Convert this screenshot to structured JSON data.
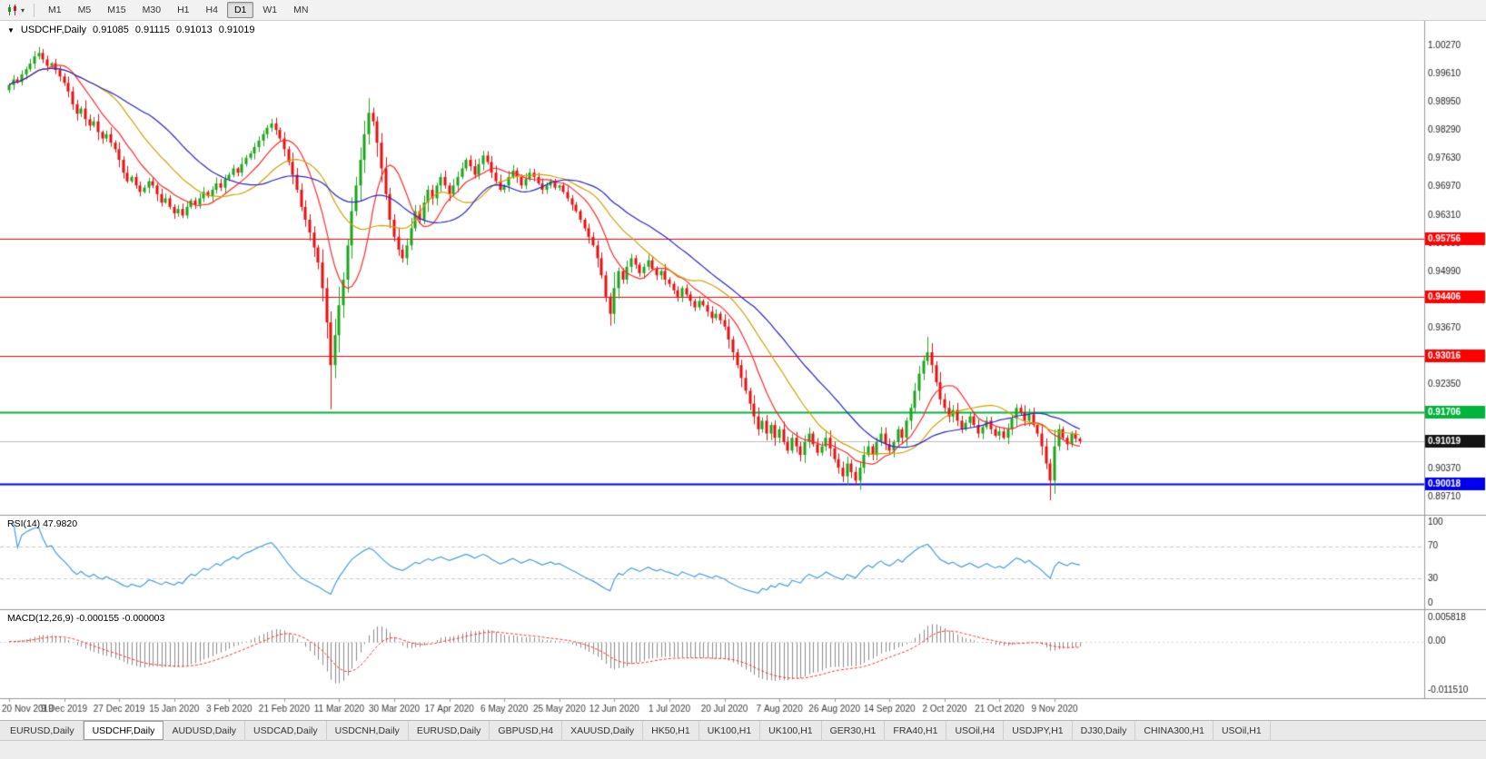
{
  "toolbar": {
    "chart_menu_caret": "▾",
    "timeframes": [
      {
        "label": "M1",
        "active": false
      },
      {
        "label": "M5",
        "active": false
      },
      {
        "label": "M15",
        "active": false
      },
      {
        "label": "M30",
        "active": false
      },
      {
        "label": "H1",
        "active": false
      },
      {
        "label": "H4",
        "active": false
      },
      {
        "label": "D1",
        "active": true
      },
      {
        "label": "W1",
        "active": false
      },
      {
        "label": "MN",
        "active": false
      }
    ]
  },
  "symbol_info": {
    "collapse_icon": "▼",
    "title": "USDCHF,Daily",
    "open": "0.91085",
    "high": "0.91115",
    "low": "0.91013",
    "close": "0.91019"
  },
  "price_axis_labels": [
    "1.00270",
    "0.99610",
    "0.98950",
    "0.98290",
    "0.97630",
    "0.96970",
    "0.96310",
    "0.95650",
    "0.94990",
    "0.94330",
    "0.93670",
    "0.93010",
    "0.92350",
    "0.91690",
    "0.91030",
    "0.90370",
    "0.89710"
  ],
  "levels": [
    {
      "price": 0.95756,
      "label": "0.95756",
      "color": "#ff0000",
      "width": 1
    },
    {
      "price": 0.94406,
      "label": "0.94406",
      "color": "#ff0000",
      "width": 1
    },
    {
      "price": 0.93016,
      "label": "0.93016",
      "color": "#ff0000",
      "width": 1
    },
    {
      "price": 0.91706,
      "label": "0.91706",
      "color": "#00b43c",
      "width": 2
    },
    {
      "price": 0.90018,
      "label": "0.90018",
      "color": "#0000ee",
      "width": 2
    }
  ],
  "current_price": {
    "value": 0.91019,
    "label": "0.91019",
    "badge_color": "#141414",
    "line_color": "#bdbdbd"
  },
  "rsi": {
    "title": "RSI(14) 47.9820",
    "scale_labels": [
      {
        "text": "100",
        "value": 100
      },
      {
        "text": "70",
        "value": 70
      },
      {
        "text": "30",
        "value": 30
      },
      {
        "text": "0",
        "value": 0
      }
    ],
    "dashed_levels": [
      70,
      30
    ],
    "line_color": "#4a9ede"
  },
  "macd": {
    "title": "MACD(12,26,9) -0.000155 -0.000003",
    "scale_labels": [
      {
        "text": "0.005818",
        "value": 0.005818
      },
      {
        "text": "0.00",
        "value": 0
      },
      {
        "text": "-0.011510",
        "value": -0.01151
      }
    ],
    "hist_color": "#8a8a8a",
    "signal_color": "#ff3030"
  },
  "tabs": [
    {
      "label": "EURUSD,Daily",
      "active": false
    },
    {
      "label": "USDCHF,Daily",
      "active": true
    },
    {
      "label": "AUDUSD,Daily",
      "active": false
    },
    {
      "label": "USDCAD,Daily",
      "active": false
    },
    {
      "label": "USDCNH,Daily",
      "active": false
    },
    {
      "label": "EURUSD,Daily",
      "active": false
    },
    {
      "label": "GBPUSD,H4",
      "active": false
    },
    {
      "label": "XAUUSD,Daily",
      "active": false
    },
    {
      "label": "HK50,H1",
      "active": false
    },
    {
      "label": "UK100,H1",
      "active": false
    },
    {
      "label": "UK100,H1",
      "active": false
    },
    {
      "label": "GER30,H1",
      "active": false
    },
    {
      "label": "FRA40,H1",
      "active": false
    },
    {
      "label": "USOil,H4",
      "active": false
    },
    {
      "label": "USDJPY,H1",
      "active": false
    },
    {
      "label": "DJ30,Daily",
      "active": false
    },
    {
      "label": "CHINA300,H1",
      "active": false
    },
    {
      "label": "USOil,H1",
      "active": false
    }
  ],
  "chart_data": {
    "type": "candlestick",
    "symbol": "USDCHF",
    "timeframe": "Daily",
    "x_tick_labels": [
      {
        "index": 0,
        "label": "20 Nov 2019"
      },
      {
        "index": 13,
        "label": "9 Dec 2019"
      },
      {
        "index": 26,
        "label": "27 Dec 2019"
      },
      {
        "index": 39,
        "label": "15 Jan 2020"
      },
      {
        "index": 52,
        "label": "3 Feb 2020"
      },
      {
        "index": 65,
        "label": "21 Feb 2020"
      },
      {
        "index": 78,
        "label": "11 Mar 2020"
      },
      {
        "index": 91,
        "label": "30 Mar 2020"
      },
      {
        "index": 104,
        "label": "17 Apr 2020"
      },
      {
        "index": 117,
        "label": "6 May 2020"
      },
      {
        "index": 130,
        "label": "25 May 2020"
      },
      {
        "index": 143,
        "label": "12 Jun 2020"
      },
      {
        "index": 156,
        "label": "1 Jul 2020"
      },
      {
        "index": 169,
        "label": "20 Jul 2020"
      },
      {
        "index": 182,
        "label": "7 Aug 2020"
      },
      {
        "index": 195,
        "label": "26 Aug 2020"
      },
      {
        "index": 208,
        "label": "14 Sep 2020"
      },
      {
        "index": 221,
        "label": "2 Oct 2020"
      },
      {
        "index": 234,
        "label": "21 Oct 2020"
      },
      {
        "index": 247,
        "label": "9 Nov 2020"
      }
    ],
    "closes": [
      0.9935,
      0.9948,
      0.9942,
      0.996,
      0.9972,
      0.9985,
      1.0002,
      1.001,
      0.9995,
      0.998,
      0.9986,
      0.997,
      0.9955,
      0.994,
      0.992,
      0.989,
      0.9868,
      0.988,
      0.9855,
      0.984,
      0.985,
      0.9825,
      0.981,
      0.982,
      0.98,
      0.9785,
      0.976,
      0.973,
      0.971,
      0.972,
      0.97,
      0.9685,
      0.9695,
      0.971,
      0.97,
      0.968,
      0.966,
      0.967,
      0.965,
      0.9635,
      0.9645,
      0.963,
      0.965,
      0.9665,
      0.9655,
      0.967,
      0.9685,
      0.9675,
      0.969,
      0.9705,
      0.9695,
      0.9715,
      0.9725,
      0.974,
      0.973,
      0.975,
      0.9765,
      0.9775,
      0.979,
      0.9805,
      0.982,
      0.9835,
      0.9845,
      0.983,
      0.981,
      0.9785,
      0.9755,
      0.9725,
      0.969,
      0.965,
      0.962,
      0.959,
      0.9555,
      0.952,
      0.946,
      0.938,
      0.928,
      0.935,
      0.942,
      0.948,
      0.956,
      0.964,
      0.97,
      0.976,
      0.982,
      0.987,
      0.985,
      0.98,
      0.974,
      0.968,
      0.962,
      0.958,
      0.955,
      0.953,
      0.956,
      0.96,
      0.964,
      0.962,
      0.966,
      0.969,
      0.967,
      0.97,
      0.972,
      0.97,
      0.968,
      0.97,
      0.972,
      0.974,
      0.976,
      0.9745,
      0.9725,
      0.975,
      0.977,
      0.9755,
      0.973,
      0.971,
      0.969,
      0.97,
      0.972,
      0.9735,
      0.972,
      0.97,
      0.9715,
      0.973,
      0.972,
      0.9705,
      0.969,
      0.97,
      0.971,
      0.9695,
      0.97,
      0.9685,
      0.967,
      0.9655,
      0.964,
      0.962,
      0.96,
      0.958,
      0.956,
      0.953,
      0.949,
      0.944,
      0.94,
      0.946,
      0.95,
      0.948,
      0.951,
      0.953,
      0.9515,
      0.9495,
      0.951,
      0.9525,
      0.9505,
      0.949,
      0.95,
      0.948,
      0.947,
      0.9455,
      0.944,
      0.946,
      0.9445,
      0.943,
      0.9415,
      0.943,
      0.942,
      0.9405,
      0.939,
      0.94,
      0.9385,
      0.937,
      0.934,
      0.931,
      0.928,
      0.925,
      0.922,
      0.919,
      0.916,
      0.913,
      0.915,
      0.912,
      0.914,
      0.911,
      0.913,
      0.91,
      0.908,
      0.911,
      0.909,
      0.907,
      0.91,
      0.912,
      0.9095,
      0.9075,
      0.909,
      0.911,
      0.9085,
      0.906,
      0.904,
      0.902,
      0.905,
      0.903,
      0.901,
      0.904,
      0.907,
      0.909,
      0.907,
      0.91,
      0.912,
      0.9095,
      0.908,
      0.91,
      0.913,
      0.911,
      0.915,
      0.918,
      0.922,
      0.926,
      0.929,
      0.931,
      0.928,
      0.924,
      0.92,
      0.918,
      0.916,
      0.9175,
      0.915,
      0.913,
      0.9145,
      0.916,
      0.914,
      0.912,
      0.9135,
      0.915,
      0.913,
      0.9115,
      0.9125,
      0.911,
      0.913,
      0.9155,
      0.918,
      0.917,
      0.915,
      0.9165,
      0.914,
      0.912,
      0.909,
      0.905,
      0.901,
      0.909,
      0.913,
      0.911,
      0.9095,
      0.912,
      0.9108,
      0.9102
    ],
    "wick_highs": {
      "7": 1.0024,
      "85": 0.9904,
      "217": 0.9346
    },
    "wick_lows": {
      "76": 0.9177,
      "142": 0.9372,
      "200": 0.8999,
      "246": 0.8964
    },
    "candle_up_color": "#1ca41c",
    "candle_down_color": "#e41111",
    "moving_averages": [
      {
        "period": 10,
        "color": "#ff2a2a"
      },
      {
        "period": 21,
        "color": "#d2a106"
      },
      {
        "period": 34,
        "color": "#2626cc"
      }
    ],
    "rsi_period": 14,
    "macd_params": [
      12,
      26,
      9
    ],
    "price_range": {
      "top": 1.0085,
      "bottom": 0.893
    },
    "macd_range": {
      "top": 0.0075,
      "bottom": -0.0135
    }
  }
}
